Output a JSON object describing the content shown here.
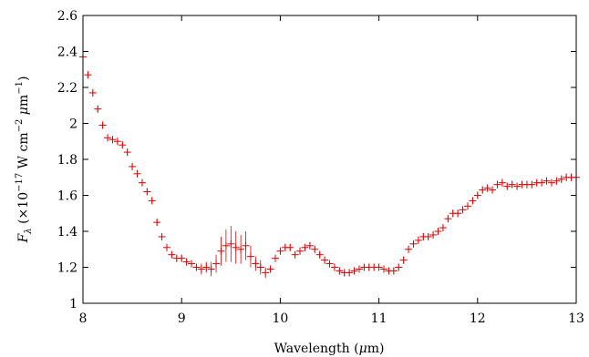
{
  "chart_data": {
    "type": "scatter",
    "xlabel_parts": {
      "main": "Wavelength (",
      "mu": "μ",
      "unit": "m)"
    },
    "ylabel_parts": {
      "f": "F",
      "lambda": "λ",
      "pre": " (×10",
      "exp1": "−17",
      "mid": " W cm",
      "exp2": "−2",
      "mu": " μ",
      "m": "m",
      "exp3": "−1",
      "close": ")"
    },
    "xlim": [
      8,
      13
    ],
    "ylim": [
      1,
      2.6
    ],
    "xticks": [
      8,
      9,
      10,
      11,
      12,
      13
    ],
    "yticks": [
      1,
      1.2,
      1.4,
      1.6,
      1.8,
      2,
      2.2,
      2.4,
      2.6
    ],
    "xtick_labels": [
      "8",
      "9",
      "10",
      "11",
      "12",
      "13"
    ],
    "ytick_labels": [
      "1",
      "1.2",
      "1.4",
      "1.6",
      "1.8",
      "2",
      "2.2",
      "2.4",
      "2.6"
    ],
    "marker": "plus",
    "error_bars": true,
    "color": "#e00000",
    "series": [
      {
        "x": [
          8.0,
          8.05,
          8.1,
          8.15,
          8.2,
          8.25,
          8.3,
          8.35,
          8.4,
          8.45,
          8.5,
          8.55,
          8.6,
          8.65,
          8.7,
          8.75,
          8.8,
          8.85,
          8.9,
          8.95,
          9.0,
          9.05,
          9.1,
          9.15,
          9.2,
          9.25,
          9.3,
          9.35,
          9.4,
          9.45,
          9.5,
          9.55,
          9.6,
          9.65,
          9.7,
          9.75,
          9.8,
          9.85,
          9.9,
          9.95,
          10.0,
          10.05,
          10.1,
          10.15,
          10.2,
          10.25,
          10.3,
          10.35,
          10.4,
          10.45,
          10.5,
          10.55,
          10.6,
          10.65,
          10.7,
          10.75,
          10.8,
          10.85,
          10.9,
          10.95,
          11.0,
          11.05,
          11.1,
          11.15,
          11.2,
          11.25,
          11.3,
          11.35,
          11.4,
          11.45,
          11.5,
          11.55,
          11.6,
          11.65,
          11.7,
          11.75,
          11.8,
          11.85,
          11.9,
          11.95,
          12.0,
          12.05,
          12.1,
          12.15,
          12.2,
          12.25,
          12.3,
          12.35,
          12.4,
          12.45,
          12.5,
          12.55,
          12.6,
          12.65,
          12.7,
          12.75,
          12.8,
          12.85,
          12.9,
          12.95,
          13.0
        ],
        "y": [
          2.37,
          2.27,
          2.17,
          2.08,
          1.99,
          1.92,
          1.91,
          1.9,
          1.88,
          1.84,
          1.76,
          1.72,
          1.67,
          1.62,
          1.57,
          1.45,
          1.37,
          1.31,
          1.27,
          1.25,
          1.25,
          1.23,
          1.22,
          1.2,
          1.19,
          1.2,
          1.19,
          1.22,
          1.29,
          1.32,
          1.33,
          1.31,
          1.3,
          1.32,
          1.26,
          1.22,
          1.2,
          1.17,
          1.19,
          1.25,
          1.29,
          1.31,
          1.31,
          1.27,
          1.29,
          1.31,
          1.32,
          1.3,
          1.27,
          1.24,
          1.22,
          1.2,
          1.18,
          1.17,
          1.17,
          1.18,
          1.19,
          1.2,
          1.2,
          1.2,
          1.2,
          1.19,
          1.18,
          1.18,
          1.2,
          1.24,
          1.3,
          1.33,
          1.35,
          1.37,
          1.37,
          1.38,
          1.4,
          1.42,
          1.47,
          1.5,
          1.5,
          1.52,
          1.54,
          1.57,
          1.6,
          1.63,
          1.64,
          1.63,
          1.66,
          1.67,
          1.65,
          1.66,
          1.65,
          1.66,
          1.66,
          1.66,
          1.67,
          1.67,
          1.68,
          1.67,
          1.68,
          1.69,
          1.7,
          1.7,
          1.7
        ],
        "err": [
          0.02,
          0.02,
          0.02,
          0.02,
          0.02,
          0.02,
          0.02,
          0.02,
          0.02,
          0.02,
          0.02,
          0.02,
          0.02,
          0.02,
          0.02,
          0.02,
          0.02,
          0.02,
          0.02,
          0.02,
          0.02,
          0.02,
          0.02,
          0.02,
          0.03,
          0.03,
          0.04,
          0.05,
          0.08,
          0.09,
          0.1,
          0.09,
          0.08,
          0.08,
          0.06,
          0.04,
          0.04,
          0.03,
          0.02,
          0.02,
          0.02,
          0.02,
          0.02,
          0.02,
          0.02,
          0.02,
          0.02,
          0.02,
          0.02,
          0.02,
          0.02,
          0.02,
          0.02,
          0.02,
          0.02,
          0.02,
          0.02,
          0.02,
          0.02,
          0.02,
          0.02,
          0.02,
          0.02,
          0.02,
          0.02,
          0.02,
          0.02,
          0.02,
          0.02,
          0.02,
          0.02,
          0.02,
          0.02,
          0.02,
          0.02,
          0.02,
          0.02,
          0.02,
          0.02,
          0.02,
          0.02,
          0.02,
          0.02,
          0.02,
          0.02,
          0.02,
          0.02,
          0.02,
          0.02,
          0.02,
          0.02,
          0.02,
          0.02,
          0.02,
          0.02,
          0.02,
          0.02,
          0.02,
          0.02,
          0.02,
          0.02
        ]
      }
    ]
  }
}
